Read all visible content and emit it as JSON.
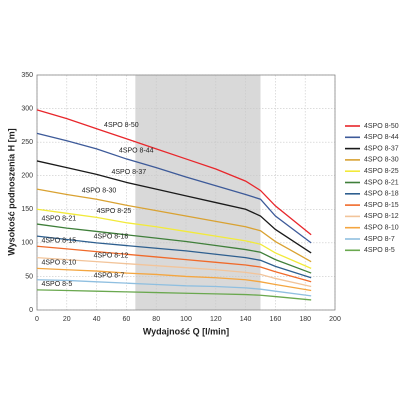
{
  "chart_data": {
    "type": "line",
    "x_label": "Wydajność Q [l/min]",
    "y_label": "Wysokość podnoszenia H [m]",
    "x": [
      0,
      20,
      40,
      60,
      80,
      100,
      120,
      140,
      150,
      160,
      184
    ],
    "xlim": [
      0,
      200
    ],
    "xticks": [
      0,
      20,
      40,
      60,
      80,
      100,
      120,
      140,
      160,
      180,
      200
    ],
    "ylim": [
      0,
      350
    ],
    "yticks": [
      0,
      50,
      100,
      150,
      200,
      250,
      300,
      350
    ],
    "grid": true,
    "highlight_x": [
      66,
      150
    ],
    "highlight_color": "#d9d9d9",
    "legend": "right",
    "series": [
      {
        "name": "4SPO 8-50",
        "color": "#e8262b",
        "values": [
          298,
          285,
          270,
          255,
          240,
          225,
          210,
          192,
          178,
          155,
          112
        ]
      },
      {
        "name": "4SPO 8-44",
        "color": "#3d5a99",
        "values": [
          263,
          252,
          240,
          225,
          212,
          198,
          185,
          172,
          165,
          140,
          100
        ]
      },
      {
        "name": "4SPO 8-37",
        "color": "#1a1a1a",
        "values": [
          222,
          212,
          202,
          190,
          180,
          170,
          160,
          150,
          140,
          120,
          85
        ]
      },
      {
        "name": "4SPO 8-30",
        "color": "#d9a232",
        "values": [
          180,
          172,
          165,
          156,
          148,
          140,
          132,
          124,
          118,
          102,
          72
        ]
      },
      {
        "name": "4SPO 8-25",
        "color": "#f2ea3a",
        "values": [
          150,
          144,
          138,
          130,
          124,
          117,
          110,
          103,
          98,
          85,
          62
        ]
      },
      {
        "name": "4SPO 8-21",
        "color": "#3f7f3a",
        "values": [
          128,
          122,
          117,
          112,
          107,
          102,
          96,
          90,
          86,
          75,
          55
        ]
      },
      {
        "name": "4SPO 8-18",
        "color": "#2e5f8f",
        "values": [
          110,
          105,
          100,
          96,
          92,
          88,
          83,
          78,
          74,
          65,
          48
        ]
      },
      {
        "name": "4SPO 8-15",
        "color": "#f06a2a",
        "values": [
          95,
          91,
          87,
          83,
          79,
          75,
          71,
          67,
          64,
          57,
          42
        ]
      },
      {
        "name": "4SPO 8-12",
        "color": "#f2c49a",
        "values": [
          78,
          75,
          72,
          69,
          66,
          63,
          60,
          56,
          53,
          47,
          35
        ]
      },
      {
        "name": "4SPO 8-10",
        "color": "#f4a640",
        "values": [
          62,
          60,
          58,
          55,
          53,
          50,
          48,
          45,
          42,
          38,
          29
        ]
      },
      {
        "name": "4SPO 8-7",
        "color": "#8fbfe0",
        "values": [
          45,
          44,
          42,
          40,
          38,
          36,
          35,
          33,
          31,
          28,
          21
        ]
      },
      {
        "name": "4SPO 8-5",
        "color": "#6aa84f",
        "values": [
          30,
          29,
          28,
          27,
          26,
          25,
          24,
          23,
          22,
          20,
          15
        ]
      }
    ]
  }
}
